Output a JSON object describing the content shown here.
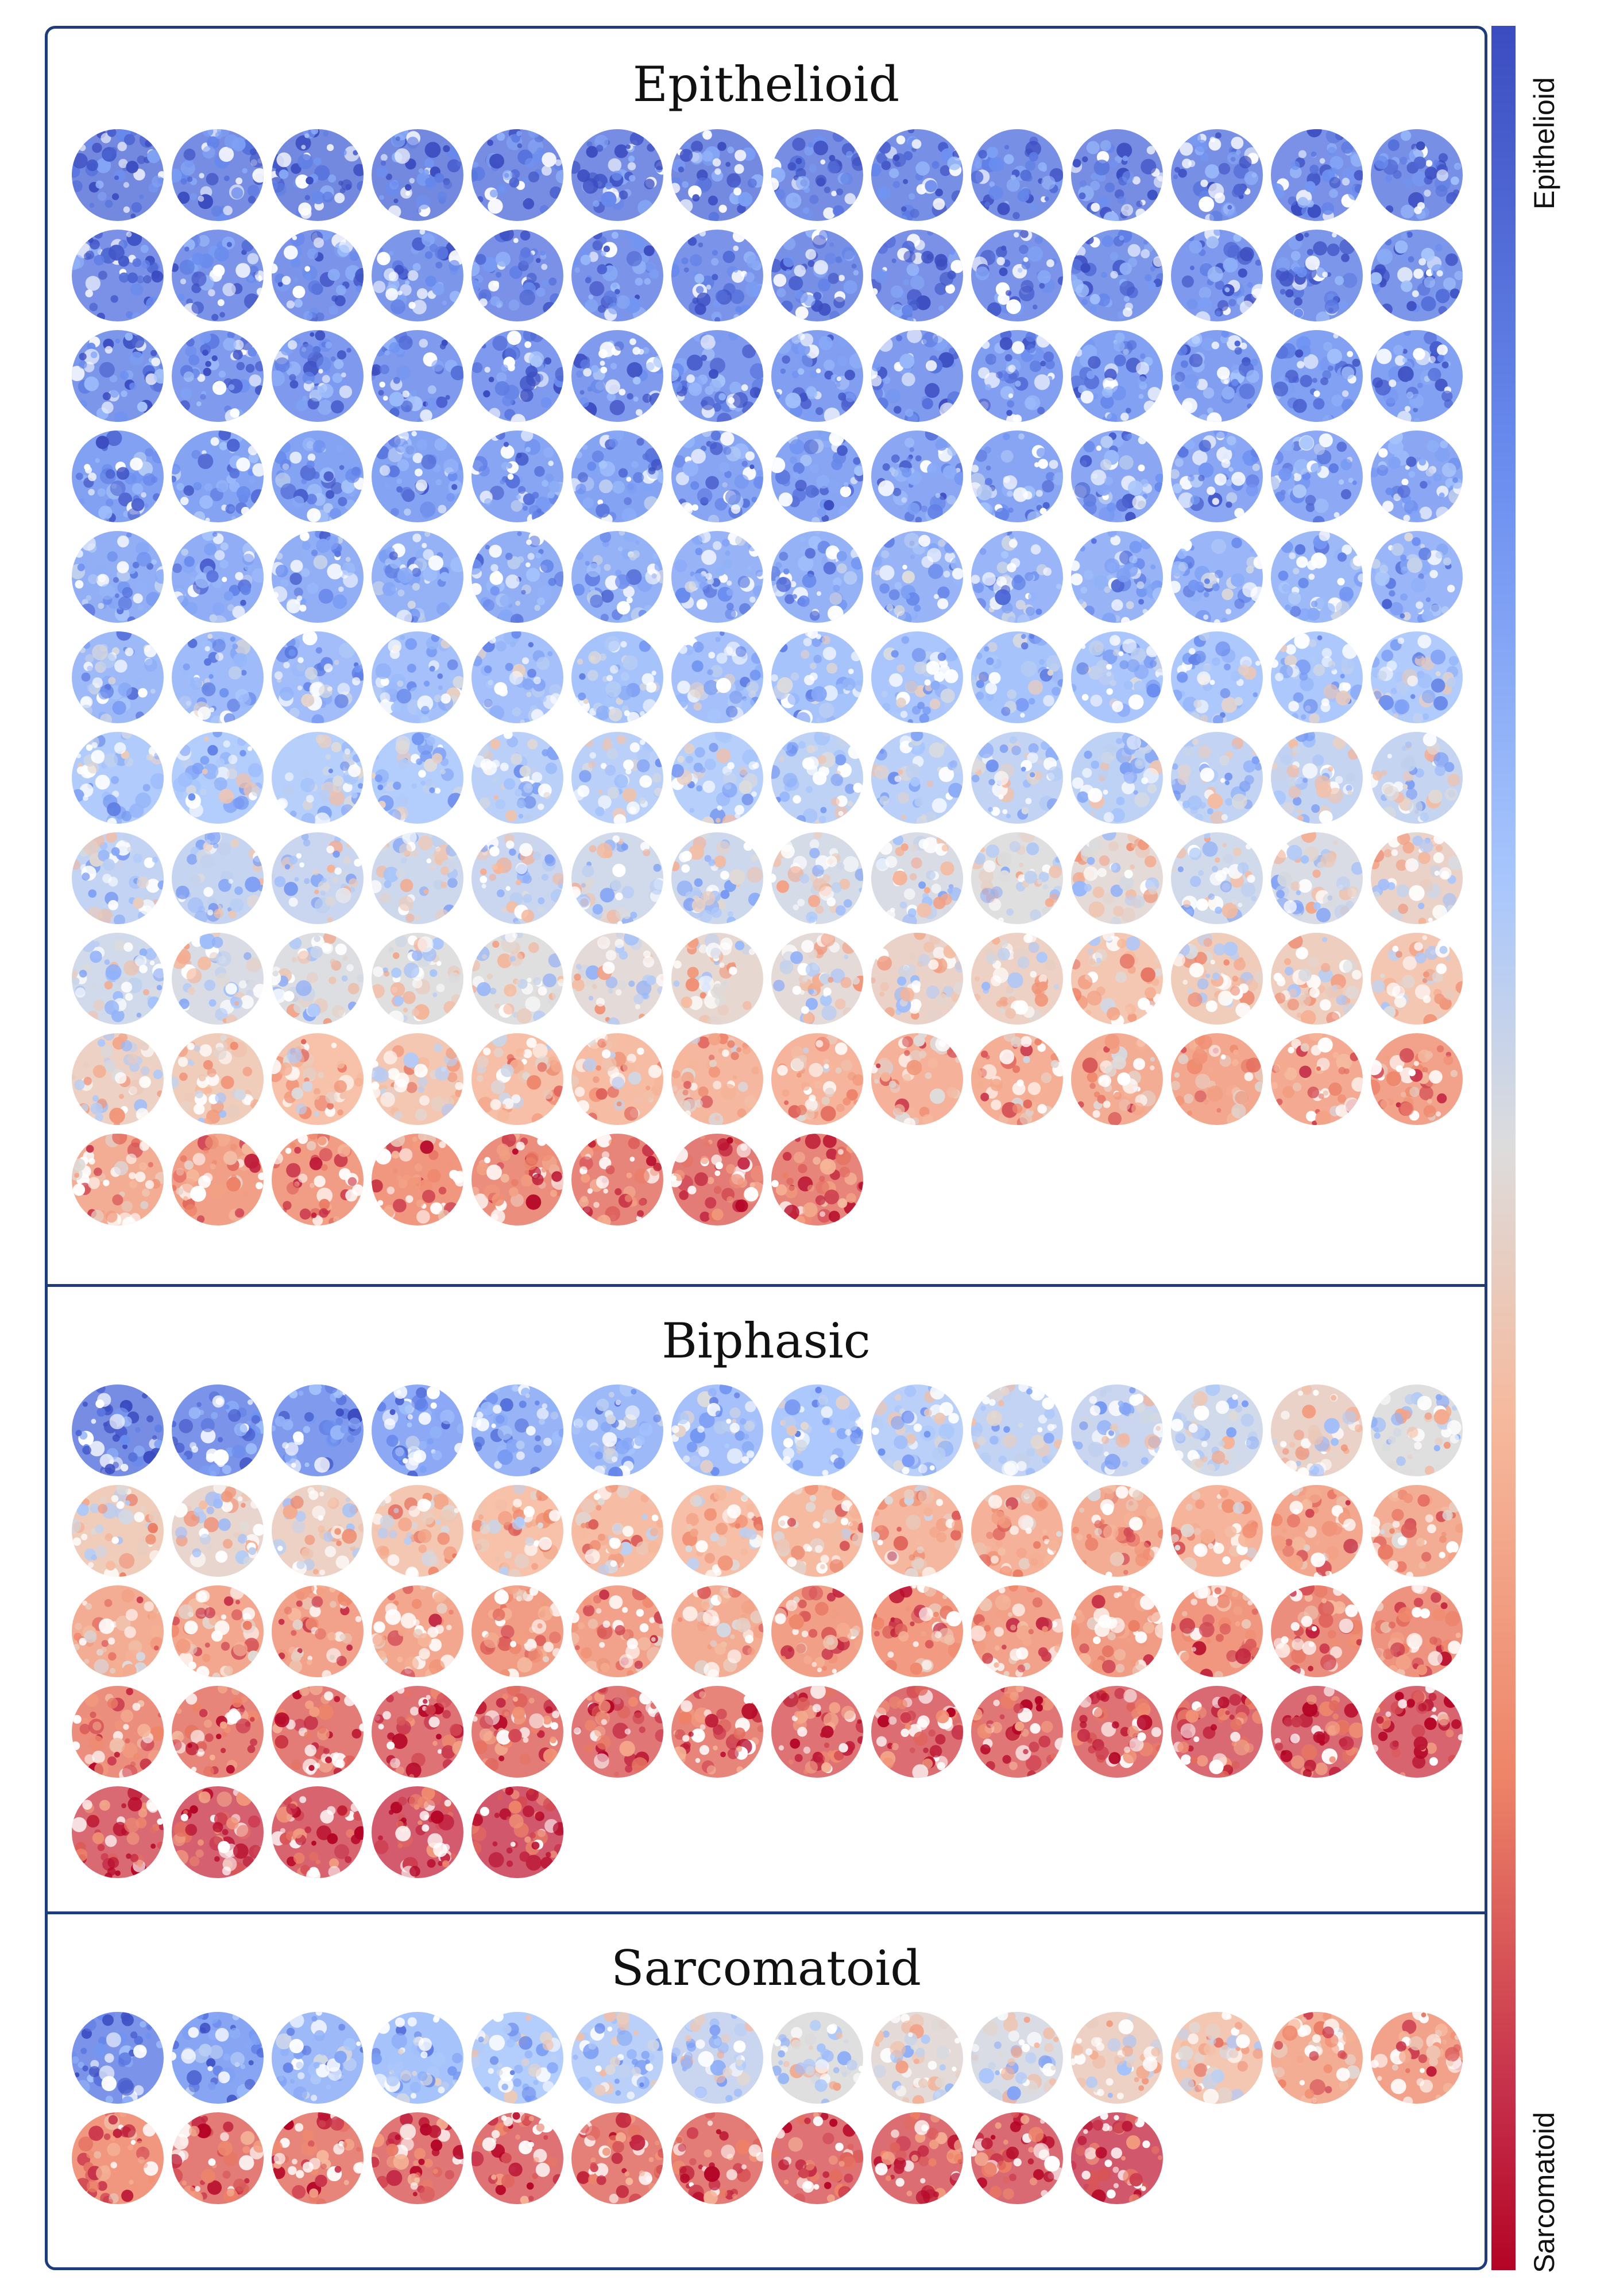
{
  "colors": {
    "epithelioid": "#3b4cc0",
    "sarcomatoid": "#b40426",
    "frame": "#1f3c7a"
  },
  "colorbar": {
    "top_label": "Epithelioid",
    "bottom_label": "Sarcomatoid"
  },
  "groups": [
    {
      "title": "Epithelioid",
      "rows": [
        [
          0.1,
          0.12,
          0.1,
          0.1,
          0.12,
          0.12,
          0.11,
          0.12,
          0.13,
          0.13,
          0.12,
          0.13,
          0.14,
          0.13
        ],
        [
          0.14,
          0.15,
          0.15,
          0.16,
          0.14,
          0.15,
          0.15,
          0.13,
          0.14,
          0.15,
          0.16,
          0.17,
          0.16,
          0.16
        ],
        [
          0.16,
          0.18,
          0.17,
          0.18,
          0.17,
          0.18,
          0.18,
          0.19,
          0.18,
          0.19,
          0.2,
          0.19,
          0.2,
          0.2
        ],
        [
          0.2,
          0.21,
          0.21,
          0.21,
          0.22,
          0.21,
          0.22,
          0.22,
          0.23,
          0.22,
          0.23,
          0.23,
          0.24,
          0.23
        ],
        [
          0.26,
          0.25,
          0.26,
          0.27,
          0.26,
          0.27,
          0.28,
          0.27,
          0.28,
          0.29,
          0.28,
          0.29,
          0.3,
          0.29
        ],
        [
          0.3,
          0.31,
          0.32,
          0.33,
          0.33,
          0.34,
          0.33,
          0.34,
          0.35,
          0.34,
          0.35,
          0.36,
          0.36,
          0.37
        ],
        [
          0.37,
          0.38,
          0.39,
          0.38,
          0.4,
          0.4,
          0.39,
          0.41,
          0.4,
          0.42,
          0.41,
          0.42,
          0.43,
          0.43
        ],
        [
          0.42,
          0.43,
          0.44,
          0.45,
          0.44,
          0.46,
          0.45,
          0.47,
          0.48,
          0.5,
          0.52,
          0.46,
          0.48,
          0.55
        ],
        [
          0.46,
          0.48,
          0.49,
          0.5,
          0.5,
          0.52,
          0.53,
          0.52,
          0.55,
          0.56,
          0.6,
          0.58,
          0.57,
          0.6
        ],
        [
          0.56,
          0.58,
          0.62,
          0.6,
          0.63,
          0.64,
          0.66,
          0.67,
          0.68,
          0.69,
          0.7,
          0.72,
          0.71,
          0.74
        ],
        [
          0.7,
          0.75,
          0.76,
          0.78,
          0.8,
          0.82,
          0.84,
          0.82
        ]
      ]
    },
    {
      "title": "Biphasic",
      "rows": [
        [
          0.12,
          0.15,
          0.18,
          0.24,
          0.28,
          0.3,
          0.33,
          0.36,
          0.4,
          0.42,
          0.44,
          0.46,
          0.55,
          0.5
        ],
        [
          0.58,
          0.54,
          0.56,
          0.6,
          0.62,
          0.64,
          0.63,
          0.65,
          0.66,
          0.68,
          0.7,
          0.67,
          0.72,
          0.7
        ],
        [
          0.7,
          0.72,
          0.74,
          0.72,
          0.76,
          0.74,
          0.7,
          0.75,
          0.77,
          0.74,
          0.76,
          0.78,
          0.8,
          0.79
        ],
        [
          0.8,
          0.82,
          0.84,
          0.86,
          0.84,
          0.85,
          0.82,
          0.86,
          0.87,
          0.85,
          0.86,
          0.88,
          0.88,
          0.89
        ],
        [
          0.88,
          0.9,
          0.89,
          0.91,
          0.92
        ]
      ]
    },
    {
      "title": "Sarcomatoid",
      "rows": [
        [
          0.15,
          0.22,
          0.3,
          0.34,
          0.38,
          0.4,
          0.44,
          0.5,
          0.52,
          0.48,
          0.56,
          0.6,
          0.7,
          0.74
        ],
        [
          0.78,
          0.84,
          0.82,
          0.85,
          0.86,
          0.83,
          0.84,
          0.86,
          0.87,
          0.88,
          0.92
        ]
      ]
    }
  ]
}
